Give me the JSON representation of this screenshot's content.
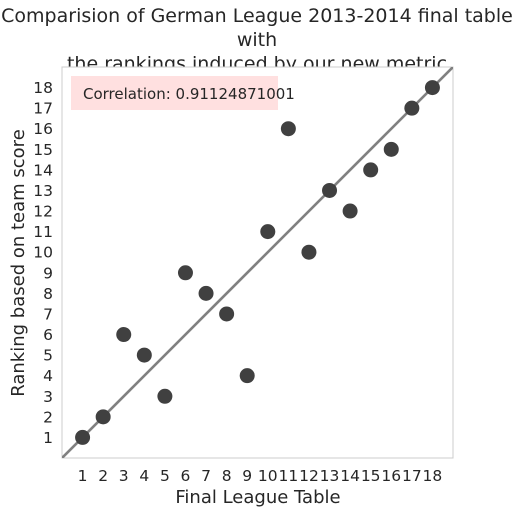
{
  "chart_data": {
    "type": "scatter",
    "title": "Comparision of German League 2013-2014 final table with\nthe rankings induced by our new metric",
    "xlabel": "Final League Table",
    "ylabel": "Ranking based on team score",
    "xlim": [
      0.0,
      19.0
    ],
    "ylim": [
      0.0,
      19.0
    ],
    "xticks": [
      1,
      2,
      3,
      4,
      5,
      6,
      7,
      8,
      9,
      10,
      11,
      12,
      13,
      14,
      15,
      16,
      17,
      18
    ],
    "yticks": [
      1,
      2,
      3,
      4,
      5,
      6,
      7,
      8,
      9,
      10,
      11,
      12,
      13,
      14,
      15,
      16,
      17,
      18
    ],
    "grid": false,
    "points": [
      {
        "x": 1,
        "y": 1
      },
      {
        "x": 2,
        "y": 2
      },
      {
        "x": 3,
        "y": 6
      },
      {
        "x": 4,
        "y": 5
      },
      {
        "x": 5,
        "y": 3
      },
      {
        "x": 6,
        "y": 9
      },
      {
        "x": 7,
        "y": 8
      },
      {
        "x": 8,
        "y": 7
      },
      {
        "x": 9,
        "y": 4
      },
      {
        "x": 10,
        "y": 11
      },
      {
        "x": 11,
        "y": 16
      },
      {
        "x": 12,
        "y": 10
      },
      {
        "x": 13,
        "y": 13
      },
      {
        "x": 14,
        "y": 12
      },
      {
        "x": 15,
        "y": 14
      },
      {
        "x": 16,
        "y": 15
      },
      {
        "x": 17,
        "y": 17
      },
      {
        "x": 18,
        "y": 18
      }
    ],
    "reference_line": {
      "from": [
        0,
        0
      ],
      "to": [
        19,
        19
      ],
      "color": "#808080"
    },
    "annotation": {
      "text": "Correlation: 0.91124871001",
      "background": "#ffe0e0"
    },
    "marker_color": "#404040",
    "frame_color": "#cccccc"
  }
}
